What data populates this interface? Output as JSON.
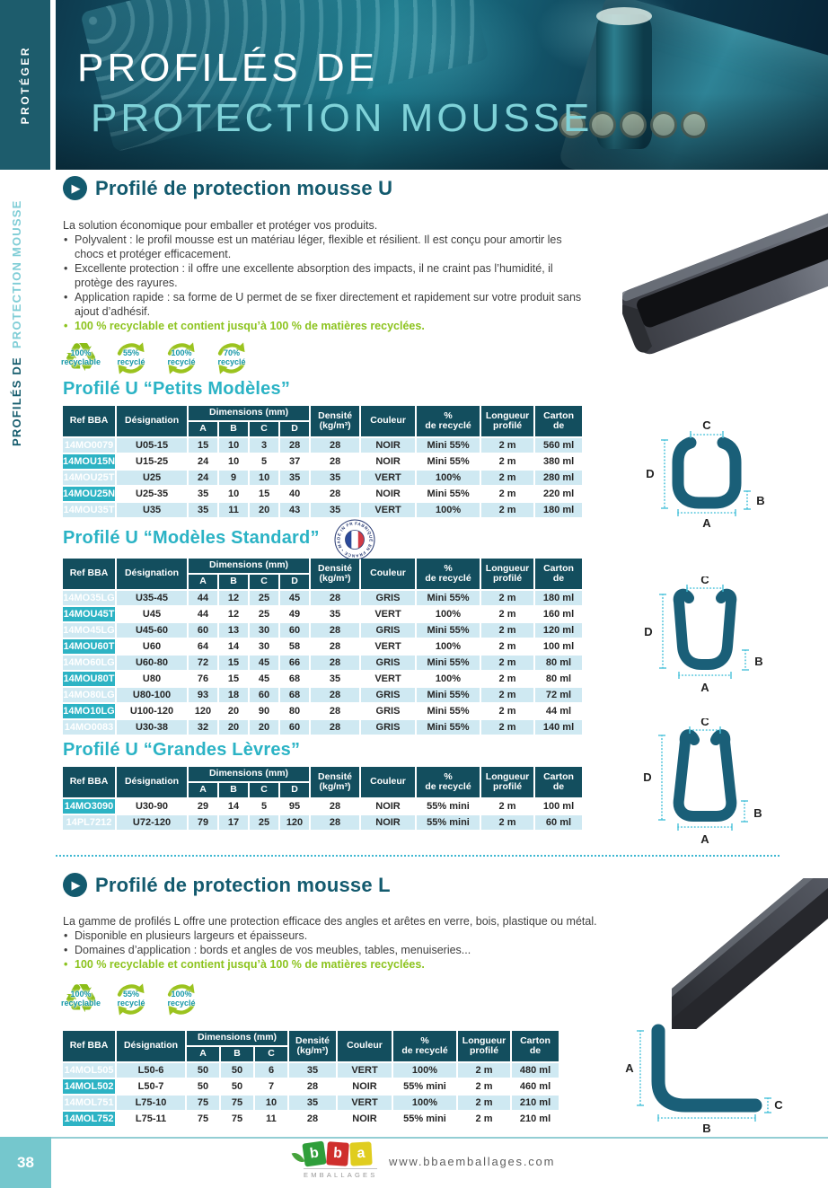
{
  "colors": {
    "accent_dark_teal": "#135a6e",
    "accent_cyan": "#2bb3c5",
    "table_header": "#134e5e",
    "ref_cell": "#2db3c4",
    "row_stripe": "#cfe9f2",
    "green": "#8cc31e",
    "footer_box": "#75c7cd"
  },
  "icons": {
    "section_arrow": "▶"
  },
  "dim_labels": {
    "a": "A",
    "b": "B",
    "c": "C",
    "d": "D"
  },
  "sidebar": {
    "tab": "PROTÉGER",
    "vertical_dark": "PROFILÉS DE",
    "vertical_light": "PROTECTION MOUSSE"
  },
  "header": {
    "line1": "PROFILÉS DE",
    "line2": "PROTECTION MOUSSE"
  },
  "table_headers": {
    "ref": "Ref BBA",
    "designation": "Désignation",
    "dimensions": "Dimensions (mm)",
    "densite_l1": "Densité",
    "densite_l2": "(kg/m³)",
    "couleur": "Couleur",
    "recycle_l1": "%",
    "recycle_l2": "de recyclé",
    "longueur_l1": "Longueur",
    "longueur_l2": "profilé",
    "carton_l1": "Carton",
    "carton_l2": "de"
  },
  "section_u": {
    "title": "Profilé de protection mousse U",
    "intro": "La solution économique pour emballer et protéger vos produits.",
    "bullets": [
      "Polyvalent : le profil mousse est un matériau léger, flexible et résilient. Il est conçu pour amortir les chocs et protéger efficacement.",
      "Excellente protection : il offre une excellente absorption des impacts, il ne craint pas l’humidité, il protège des rayures.",
      "Application rapide : sa forme de U permet de se fixer directement et rapidement sur votre produit sans ajout d’adhésif."
    ],
    "green_bullet": "100 % recyclable et contient jusqu’à 100 % de matières recyclées.",
    "badges": [
      {
        "line1": "100%",
        "line2": "recyclable"
      },
      {
        "line1": "55%",
        "line2": "recyclé"
      },
      {
        "line1": "100%",
        "line2": "recyclé"
      },
      {
        "line1": "70%",
        "line2": "recyclé"
      }
    ],
    "sub1_title": "Profilé U “Petits Modèles”",
    "sub2_title": "Profilé U “Modèles Standard”",
    "sub3_title": "Profilé U “Grandes Lèvres”",
    "stamp_text": "FABRIQUÉ EN FRANCE • MADE IN FRANCE •"
  },
  "section_l": {
    "title": "Profilé de protection mousse L",
    "intro": "La gamme de profilés L offre une protection efficace des angles et arêtes en verre, bois, plastique ou métal.",
    "bullets": [
      "Disponible en plusieurs largeurs et épaisseurs.",
      "Domaines d’application : bords et angles de vos meubles, tables, menuiseries..."
    ],
    "green_bullet": "100 % recyclable et contient jusqu’à 100 % de matières recyclées.",
    "badges": [
      {
        "line1": "100%",
        "line2": "recyclable"
      },
      {
        "line1": "55%",
        "line2": "recyclé"
      },
      {
        "line1": "100%",
        "line2": "recyclé"
      }
    ]
  },
  "tables": [
    {
      "dim_cols": [
        "A",
        "B",
        "C",
        "D"
      ],
      "rows": [
        [
          "14MO0079",
          "U05-15",
          "15",
          "10",
          "3",
          "28",
          "28",
          "NOIR",
          "Mini 55%",
          "2 m",
          "560 ml"
        ],
        [
          "14MOU15N",
          "U15-25",
          "24",
          "10",
          "5",
          "37",
          "28",
          "NOIR",
          "Mini 55%",
          "2 m",
          "380 ml"
        ],
        [
          "14MOU25T",
          "U25",
          "24",
          "9",
          "10",
          "35",
          "35",
          "VERT",
          "100%",
          "2 m",
          "280 ml"
        ],
        [
          "14MOU25N",
          "U25-35",
          "35",
          "10",
          "15",
          "40",
          "28",
          "NOIR",
          "Mini 55%",
          "2 m",
          "220 ml"
        ],
        [
          "14MOU35T",
          "U35",
          "35",
          "11",
          "20",
          "43",
          "35",
          "VERT",
          "100%",
          "2 m",
          "180 ml"
        ]
      ]
    },
    {
      "dim_cols": [
        "A",
        "B",
        "C",
        "D"
      ],
      "rows": [
        [
          "14MO35LG",
          "U35-45",
          "44",
          "12",
          "25",
          "45",
          "28",
          "GRIS",
          "Mini 55%",
          "2 m",
          "180 ml"
        ],
        [
          "14MOU45T",
          "U45",
          "44",
          "12",
          "25",
          "49",
          "35",
          "VERT",
          "100%",
          "2 m",
          "160 ml"
        ],
        [
          "14MO45LG",
          "U45-60",
          "60",
          "13",
          "30",
          "60",
          "28",
          "GRIS",
          "Mini 55%",
          "2 m",
          "120 ml"
        ],
        [
          "14MOU60T",
          "U60",
          "64",
          "14",
          "30",
          "58",
          "28",
          "VERT",
          "100%",
          "2 m",
          "100 ml"
        ],
        [
          "14MO60LG",
          "U60-80",
          "72",
          "15",
          "45",
          "66",
          "28",
          "GRIS",
          "Mini 55%",
          "2 m",
          "80 ml"
        ],
        [
          "14MOU80T",
          "U80",
          "76",
          "15",
          "45",
          "68",
          "35",
          "VERT",
          "100%",
          "2 m",
          "80 ml"
        ],
        [
          "14MO80LG",
          "U80-100",
          "93",
          "18",
          "60",
          "68",
          "28",
          "GRIS",
          "Mini 55%",
          "2 m",
          "72 ml"
        ],
        [
          "14MO10LG",
          "U100-120",
          "120",
          "20",
          "90",
          "80",
          "28",
          "GRIS",
          "Mini 55%",
          "2 m",
          "44 ml"
        ],
        [
          "14MO0083",
          "U30-38",
          "32",
          "20",
          "20",
          "60",
          "28",
          "GRIS",
          "Mini 55%",
          "2 m",
          "140 ml"
        ]
      ]
    },
    {
      "dim_cols": [
        "A",
        "B",
        "C",
        "D"
      ],
      "rows": [
        [
          "14MO3090",
          "U30-90",
          "29",
          "14",
          "5",
          "95",
          "28",
          "NOIR",
          "55% mini",
          "2 m",
          "100 ml"
        ],
        [
          "14PL7212",
          "U72-120",
          "79",
          "17",
          "25",
          "120",
          "28",
          "NOIR",
          "55% mini",
          "2 m",
          "60 ml"
        ]
      ]
    },
    {
      "dim_cols": [
        "A",
        "B",
        "C"
      ],
      "rows": [
        [
          "14MOL505",
          "L50-6",
          "50",
          "50",
          "6",
          "35",
          "VERT",
          "100%",
          "2 m",
          "480 ml"
        ],
        [
          "14MOL502",
          "L50-7",
          "50",
          "50",
          "7",
          "28",
          "NOIR",
          "55% mini",
          "2 m",
          "460 ml"
        ],
        [
          "14MOL751",
          "L75-10",
          "75",
          "75",
          "10",
          "35",
          "VERT",
          "100%",
          "2 m",
          "210 ml"
        ],
        [
          "14MOL752",
          "L75-11",
          "75",
          "75",
          "11",
          "28",
          "NOIR",
          "55% mini",
          "2 m",
          "210 ml"
        ]
      ]
    }
  ],
  "footer": {
    "page_number": "38",
    "logo_letters": [
      "b",
      "b",
      "a"
    ],
    "logo_sub": "EMBALLAGES",
    "website": "www.bbaemballages.com"
  }
}
